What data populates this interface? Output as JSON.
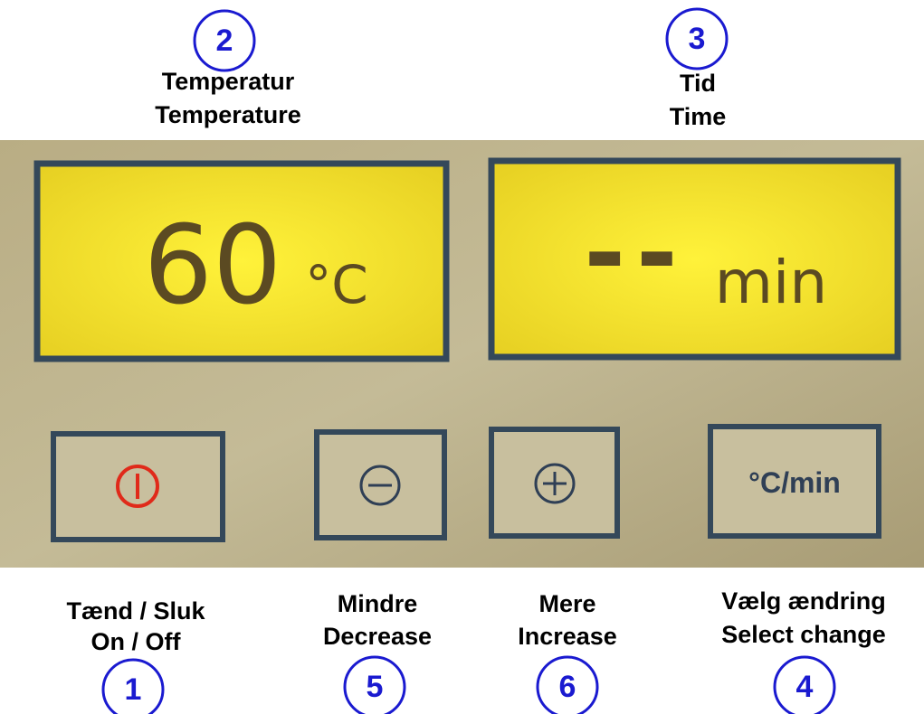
{
  "callouts": [
    {
      "number": "2",
      "danish": "Temperatur",
      "english": "Temperature"
    },
    {
      "number": "3",
      "danish": "Tid",
      "english": "Time"
    },
    {
      "number": "1",
      "danish": "Tænd / Sluk",
      "english": "On / Off"
    },
    {
      "number": "5",
      "danish": "Mindre",
      "english": "Decrease"
    },
    {
      "number": "6",
      "danish": "Mere",
      "english": "Increase"
    },
    {
      "number": "4",
      "danish": "Vælg ændring",
      "english": "Select change"
    }
  ],
  "displays": [
    {
      "reading": "60",
      "unit": "°C"
    },
    {
      "reading": "--",
      "unit": "min"
    }
  ],
  "buttons": [
    {
      "label": "°C/min"
    }
  ]
}
